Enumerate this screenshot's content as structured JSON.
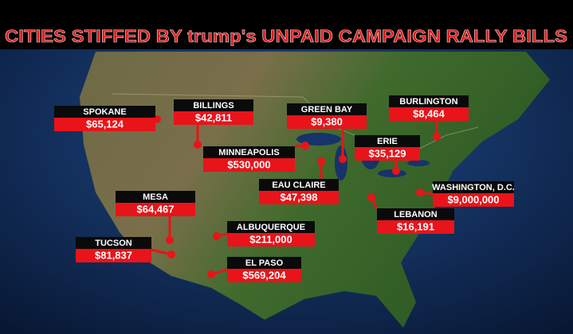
{
  "header": {
    "title": "CITIES STIFFED BY trump's UNPAID CAMPAIGN RALLY BILLS"
  },
  "cities": [
    {
      "name": "SPOKANE",
      "amount": "$65,124"
    },
    {
      "name": "BILLINGS",
      "amount": "$42,811"
    },
    {
      "name": "GREEN BAY",
      "amount": "$9,380"
    },
    {
      "name": "BURLINGTON",
      "amount": "$8,464"
    },
    {
      "name": "MINNEAPOLIS",
      "amount": "$530,000"
    },
    {
      "name": "ERIE",
      "amount": "$35,129"
    },
    {
      "name": "EAU CLAIRE",
      "amount": "$47,398"
    },
    {
      "name": "WASHINGTON, D.C.",
      "amount": "$9,000,000"
    },
    {
      "name": "MESA",
      "amount": "$64,467"
    },
    {
      "name": "LEBANON",
      "amount": "$16,191"
    },
    {
      "name": "ALBUQUERQUE",
      "amount": "$211,000"
    },
    {
      "name": "TUCSON",
      "amount": "$81,837"
    },
    {
      "name": "EL PASO",
      "amount": "$569,204"
    }
  ]
}
